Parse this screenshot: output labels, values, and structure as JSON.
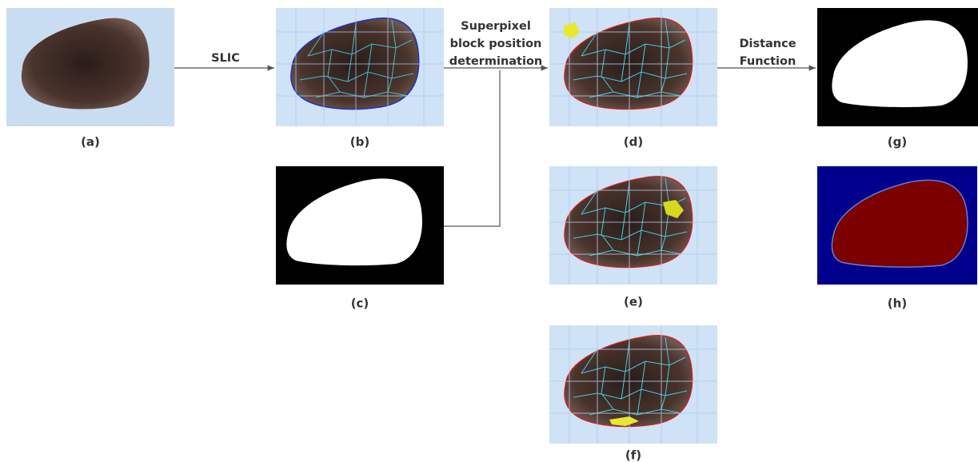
{
  "steps": {
    "slic": "SLIC",
    "superpixel": [
      "Superpixel",
      "block position",
      "determination"
    ],
    "distance": [
      "Distance",
      "Function"
    ]
  },
  "panels": [
    "(a)",
    "(b)",
    "(c)",
    "(d)",
    "(e)",
    "(f)",
    "(g)",
    "(h)"
  ]
}
